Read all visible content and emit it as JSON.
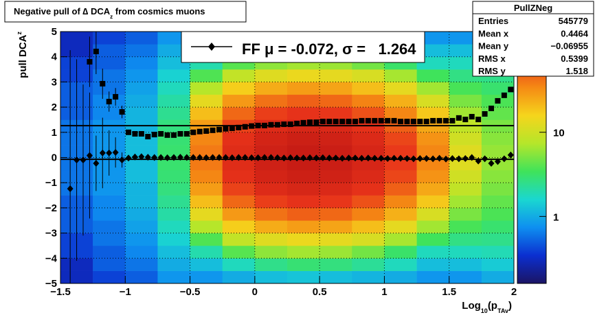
{
  "chart_data": {
    "type": "heatmap",
    "title": [
      "Negative pull of ∆ DCA",
      "z",
      " from cosmics muons"
    ],
    "x_label": [
      "Log",
      "10",
      "(p",
      "TAv",
      ")"
    ],
    "y_label": [
      "pull DCA",
      "z"
    ],
    "xlim": [
      -1.5,
      2
    ],
    "ylim": [
      -5,
      5
    ],
    "xticks": [
      {
        "value": -1.5,
        "label": "−1.5"
      },
      {
        "value": -1,
        "label": "−1"
      },
      {
        "value": -0.5,
        "label": "−0.5"
      },
      0,
      0.5,
      1,
      1.5,
      2
    ],
    "yticks": [
      {
        "value": -5,
        "label": "−5"
      },
      {
        "value": -4,
        "label": "−4"
      },
      {
        "value": -3,
        "label": "−3"
      },
      {
        "value": -2,
        "label": "−2"
      },
      {
        "value": -1,
        "label": "−1"
      },
      0,
      1,
      2,
      3,
      4,
      5
    ],
    "grid": true,
    "heatmap": {
      "xbins": [
        -1.5,
        -1.25,
        -1,
        -0.75,
        -0.5,
        -0.25,
        0,
        0.25,
        0.5,
        0.75,
        1,
        1.25,
        1.5,
        1.75,
        2
      ],
      "ybins": [
        -5,
        -4.5,
        -4,
        -3.5,
        -3,
        -2.5,
        -2,
        -1.5,
        -1,
        -0.5,
        0,
        0.5,
        1,
        1.5,
        2,
        2.5,
        3,
        3.5,
        4,
        4.5,
        5
      ],
      "z": [
        [
          0.3,
          0.3,
          0.4,
          0.4,
          0.5,
          0.5,
          0.5,
          0.6,
          0.6,
          0.6,
          0.6,
          0.6,
          0.6,
          0.5,
          0.5,
          0.5,
          0.4,
          0.4,
          0.3,
          0.3
        ],
        [
          0.4,
          0.5,
          0.5,
          0.6,
          0.6,
          0.7,
          0.7,
          0.8,
          0.8,
          0.8,
          0.8,
          0.8,
          0.8,
          0.7,
          0.7,
          0.6,
          0.6,
          0.5,
          0.5,
          0.4
        ],
        [
          0.5,
          0.6,
          0.7,
          0.8,
          0.9,
          1,
          1.1,
          1.1,
          1.2,
          1.2,
          1.2,
          1.2,
          1.1,
          1.1,
          1,
          0.9,
          0.8,
          0.7,
          0.6,
          0.5
        ],
        [
          0.8,
          1,
          1.2,
          1.5,
          1.8,
          2.1,
          2.4,
          2.7,
          2.9,
          3,
          3,
          2.9,
          2.7,
          2.4,
          2.1,
          1.8,
          1.5,
          1.2,
          1,
          0.8
        ],
        [
          0.8,
          1.2,
          2,
          3.8,
          7.4,
          13,
          20,
          28,
          35,
          39,
          39,
          35,
          28,
          20,
          13,
          7.4,
          3.8,
          2,
          1.2,
          0.8
        ],
        [
          1,
          1.8,
          4,
          8.6,
          17,
          29,
          46,
          64,
          79,
          89,
          89,
          79,
          64,
          46,
          29,
          17,
          8.6,
          4,
          1.8,
          1
        ],
        [
          1.2,
          2.5,
          5.7,
          12,
          24,
          42,
          66,
          92,
          115,
          128,
          128,
          115,
          92,
          66,
          42,
          24,
          12,
          5.7,
          2.5,
          1.2
        ],
        [
          1.3,
          2.9,
          6.6,
          14,
          28,
          49,
          76,
          106,
          132,
          148,
          148,
          132,
          106,
          76,
          49,
          28,
          14,
          6.6,
          2.9,
          1.3
        ],
        [
          1.2,
          2.7,
          6.2,
          13,
          26,
          46,
          71,
          99,
          123,
          138,
          138,
          123,
          99,
          71,
          46,
          26,
          13,
          6.2,
          2.7,
          1.2
        ],
        [
          1.1,
          2.3,
          4.8,
          11,
          20,
          36,
          56,
          78,
          97,
          108,
          108,
          97,
          78,
          56,
          36,
          20,
          11,
          4.8,
          2.3,
          1.1
        ],
        [
          1,
          1.8,
          3.1,
          6.7,
          13,
          23,
          35,
          49,
          62,
          69,
          69,
          62,
          49,
          35,
          23,
          13,
          6.7,
          3.1,
          1.8,
          1
        ],
        [
          0.8,
          1.2,
          1.8,
          3.4,
          6.5,
          11,
          18,
          25,
          31,
          35,
          35,
          31,
          25,
          18,
          11,
          6.5,
          3.4,
          1.8,
          1.2,
          0.8
        ],
        [
          0.8,
          1.2,
          1.8,
          2.6,
          3.6,
          5,
          6.5,
          8.5,
          10,
          12,
          12,
          10,
          8.5,
          6.5,
          5,
          3.6,
          2.6,
          1.8,
          1.2,
          0.8
        ],
        [
          1,
          1.4,
          1.9,
          2.5,
          3,
          3.7,
          4.3,
          5,
          5.5,
          6,
          6,
          5.5,
          5,
          4.3,
          3.7,
          3,
          2.5,
          1.9,
          1.4,
          1
        ]
      ],
      "zlim": [
        0.16,
        157
      ],
      "zticks": [
        1,
        10
      ],
      "log_z": true,
      "palette": [
        "#1b1464",
        "#0b2fd0",
        "#0e8ff0",
        "#1ad7d0",
        "#3fe35a",
        "#b5e62a",
        "#f5d51c",
        "#f58a14",
        "#e8331a",
        "#c41a14"
      ]
    },
    "series": [
      {
        "marker": "square",
        "color": "#000000",
        "x": [
          -1.275,
          -1.225,
          -1.175,
          -1.125,
          -1.075,
          -1.025,
          -0.975,
          -0.925,
          -0.875,
          -0.825,
          -0.775,
          -0.725,
          -0.675,
          -0.625,
          -0.575,
          -0.525,
          -0.475,
          -0.425,
          -0.375,
          -0.325,
          -0.275,
          -0.225,
          -0.175,
          -0.125,
          -0.075,
          -0.025,
          0.025,
          0.075,
          0.125,
          0.175,
          0.225,
          0.275,
          0.325,
          0.375,
          0.425,
          0.475,
          0.525,
          0.575,
          0.625,
          0.675,
          0.725,
          0.775,
          0.825,
          0.875,
          0.925,
          0.975,
          1.025,
          1.075,
          1.125,
          1.175,
          1.225,
          1.275,
          1.325,
          1.375,
          1.425,
          1.475,
          1.525,
          1.575,
          1.625,
          1.675,
          1.725,
          1.775,
          1.825,
          1.875,
          1.925,
          1.975
        ],
        "values": [
          3.8,
          4.21,
          2.93,
          2.22,
          2.41,
          1.81,
          1.0,
          0.94,
          0.94,
          0.83,
          0.91,
          0.94,
          0.89,
          0.89,
          0.94,
          0.94,
          1.0,
          1.03,
          1.05,
          1.08,
          1.11,
          1.14,
          1.16,
          1.19,
          1.22,
          1.25,
          1.27,
          1.27,
          1.3,
          1.3,
          1.32,
          1.32,
          1.35,
          1.38,
          1.4,
          1.4,
          1.43,
          1.43,
          1.43,
          1.43,
          1.43,
          1.43,
          1.46,
          1.46,
          1.46,
          1.46,
          1.46,
          1.46,
          1.43,
          1.43,
          1.43,
          1.43,
          1.43,
          1.46,
          1.46,
          1.46,
          1.46,
          1.57,
          1.51,
          1.62,
          1.51,
          1.73,
          1.95,
          2.25,
          2.47,
          2.7
        ],
        "errors": [
          1.0,
          0.9,
          0.6,
          0.4,
          0.35,
          0.25,
          0.02,
          0.02,
          0.02,
          0.02,
          0.02,
          0.02,
          0.02,
          0.02,
          0.02,
          0.02,
          0.02,
          0.02,
          0.02,
          0.02,
          0.02,
          0.02,
          0.02,
          0.02,
          0.02,
          0.02,
          0.02,
          0.02,
          0.02,
          0.02,
          0.02,
          0.02,
          0.02,
          0.02,
          0.02,
          0.02,
          0.02,
          0.02,
          0.02,
          0.02,
          0.02,
          0.02,
          0.02,
          0.02,
          0.02,
          0.02,
          0.02,
          0.02,
          0.02,
          0.02,
          0.02,
          0.02,
          0.02,
          0.02,
          0.02,
          0.02,
          0.02,
          0.02,
          0.02,
          0.02,
          0.02,
          0.04,
          0.04,
          0.04,
          0.04,
          0.04
        ]
      },
      {
        "marker": "diamond",
        "color": "#000000",
        "x": [
          -1.425,
          -1.375,
          -1.325,
          -1.275,
          -1.225,
          -1.175,
          -1.125,
          -1.075,
          -1.025,
          -0.975,
          -0.925,
          -0.875,
          -0.825,
          -0.775,
          -0.725,
          -0.675,
          -0.625,
          -0.575,
          -0.525,
          -0.475,
          -0.425,
          -0.375,
          -0.325,
          -0.275,
          -0.225,
          -0.175,
          -0.125,
          -0.075,
          -0.025,
          0.025,
          0.075,
          0.125,
          0.175,
          0.225,
          0.275,
          0.325,
          0.375,
          0.425,
          0.475,
          0.525,
          0.575,
          0.625,
          0.675,
          0.725,
          0.775,
          0.825,
          0.875,
          0.925,
          0.975,
          1.025,
          1.075,
          1.125,
          1.175,
          1.225,
          1.275,
          1.325,
          1.375,
          1.425,
          1.475,
          1.525,
          1.575,
          1.625,
          1.675,
          1.725,
          1.775,
          1.825,
          1.875,
          1.925,
          1.975
        ],
        "values": [
          -1.24,
          -0.1,
          -0.1,
          0.08,
          -0.23,
          0.18,
          0.18,
          0.2,
          -0.1,
          -0.02,
          0.02,
          0.03,
          0.01,
          0,
          0,
          -0.01,
          0,
          0.01,
          0,
          0,
          0,
          -0.01,
          0,
          0,
          0,
          -0.01,
          0,
          0,
          -0.01,
          -0.01,
          0,
          0,
          -0.01,
          -0.02,
          -0.01,
          -0.02,
          -0.02,
          -0.01,
          -0.02,
          -0.01,
          -0.02,
          -0.02,
          -0.03,
          -0.02,
          -0.02,
          -0.03,
          -0.02,
          -0.03,
          -0.03,
          -0.04,
          -0.03,
          -0.03,
          -0.04,
          -0.05,
          -0.04,
          -0.04,
          -0.05,
          -0.03,
          -0.06,
          -0.04,
          -0.05,
          -0.04,
          0.0,
          -0.14,
          -0.05,
          -0.23,
          -0.16,
          -0.05,
          0.1
        ],
        "errors": [
          5.5,
          4,
          3,
          2.5,
          1.1,
          1.4,
          0.9,
          0.6,
          0.3,
          0.02,
          0.02,
          0.02,
          0.02,
          0.02,
          0.02,
          0.02,
          0.02,
          0.02,
          0.02,
          0.02,
          0.02,
          0.02,
          0.02,
          0.02,
          0.02,
          0.02,
          0.02,
          0.02,
          0.02,
          0.02,
          0.02,
          0.02,
          0.02,
          0.02,
          0.02,
          0.02,
          0.02,
          0.02,
          0.02,
          0.02,
          0.02,
          0.02,
          0.02,
          0.02,
          0.02,
          0.02,
          0.02,
          0.02,
          0.02,
          0.02,
          0.02,
          0.02,
          0.02,
          0.02,
          0.02,
          0.02,
          0.02,
          0.02,
          0.02,
          0.02,
          0.02,
          0.02,
          0.02,
          0.02,
          0.04,
          0.04,
          0.04,
          0.04,
          0.04
        ]
      }
    ],
    "fit_lines": [
      1.264,
      -0.072
    ],
    "legend": {
      "label": "FF μ = -0.072, σ =   1.264"
    },
    "stats": {
      "title": "PullZNeg",
      "rows": [
        [
          "Entries",
          "545779"
        ],
        [
          "Mean x",
          "0.4464"
        ],
        [
          "Mean y",
          "−0.06955"
        ],
        [
          "RMS x",
          "0.5399"
        ],
        [
          "RMS y",
          "1.518"
        ]
      ]
    }
  }
}
